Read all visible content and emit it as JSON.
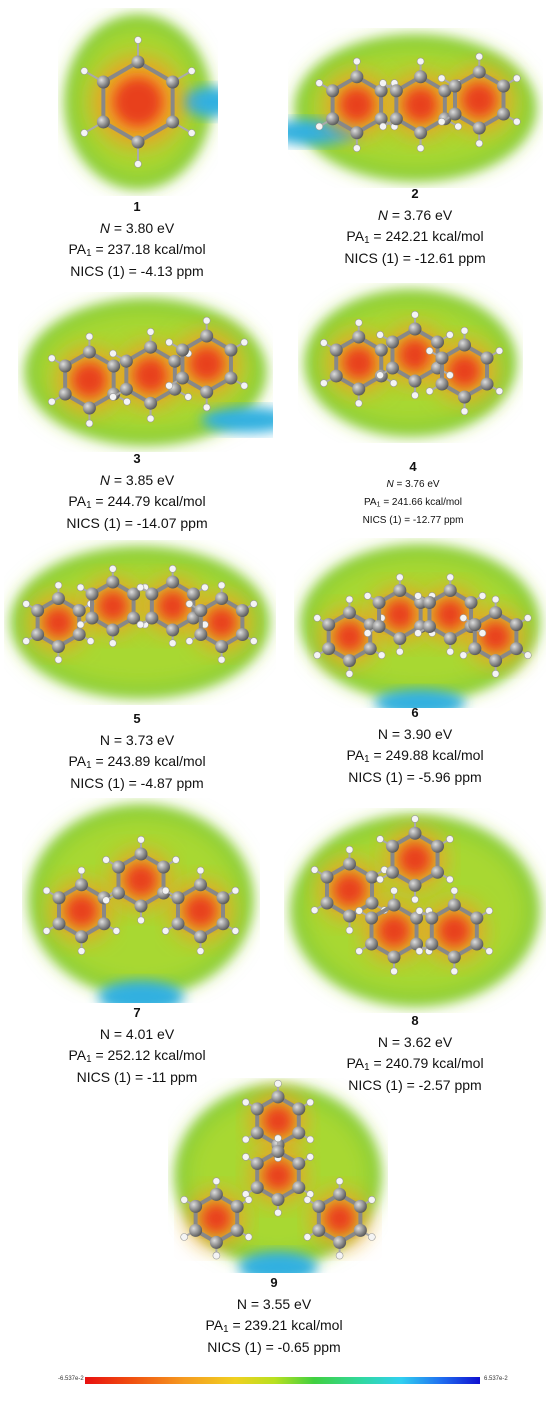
{
  "panels": [
    {
      "number": "1",
      "n_symbol": "N",
      "n_value": "= 3.80 eV",
      "pa_symbol": "PA",
      "pa_subscript": "1",
      "pa_value": "= 237.18 kcal/mol",
      "nics": "NICS (1) = -4.13 ppm"
    },
    {
      "number": "2",
      "n_symbol": "N",
      "n_value": "= 3.76 eV",
      "pa_symbol": "PA",
      "pa_subscript": "1",
      "pa_value": "= 242.21 kcal/mol",
      "nics": "NICS (1) = -12.61 ppm"
    },
    {
      "number": "3",
      "n_symbol": "N",
      "n_value": "= 3.85 eV",
      "pa_symbol": "PA",
      "pa_subscript": "1",
      "pa_value": "= 244.79 kcal/mol",
      "nics": "NICS (1) = -14.07 ppm"
    },
    {
      "number": "4",
      "n_symbol": "N",
      "n_value": "= 3.76 eV",
      "pa_symbol": "PA",
      "pa_subscript": "1",
      "pa_value": "= 241.66 kcal/mol",
      "nics": "NICS (1) = -12.77 ppm"
    },
    {
      "number": "5",
      "n_symbol": "N",
      "n_value": "= 3.73 eV",
      "pa_symbol": "PA",
      "pa_subscript": "1",
      "pa_value": "= 243.89 kcal/mol",
      "nics": "NICS (1) = -4.87 ppm"
    },
    {
      "number": "6",
      "n_symbol": "N",
      "n_value": "= 3.90 eV",
      "pa_symbol": "PA",
      "pa_subscript": "1",
      "pa_value": "= 249.88 kcal/mol",
      "nics": "NICS (1) = -5.96 ppm"
    },
    {
      "number": "7",
      "n_symbol": "N",
      "n_value": "= 4.01 eV",
      "pa_symbol": "PA",
      "pa_subscript": "1",
      "pa_value": "= 252.12 kcal/mol",
      "nics": "NICS (1) = -11 ppm"
    },
    {
      "number": "8",
      "n_symbol": "N",
      "n_value": "= 3.62 eV",
      "pa_symbol": "PA",
      "pa_subscript": "1",
      "pa_value": "= 240.79 kcal/mol",
      "nics": "NICS (1) = -2.57 ppm"
    },
    {
      "number": "9",
      "n_symbol": "N",
      "n_value": "= 3.55 eV",
      "pa_symbol": "PA",
      "pa_subscript": "1",
      "pa_value": "= 239.21 kcal/mol",
      "nics": "NICS (1) = -0.65 ppm"
    }
  ],
  "colorbar": {
    "min_label": "-6.537e-2",
    "max_label": "6.537e-2"
  }
}
